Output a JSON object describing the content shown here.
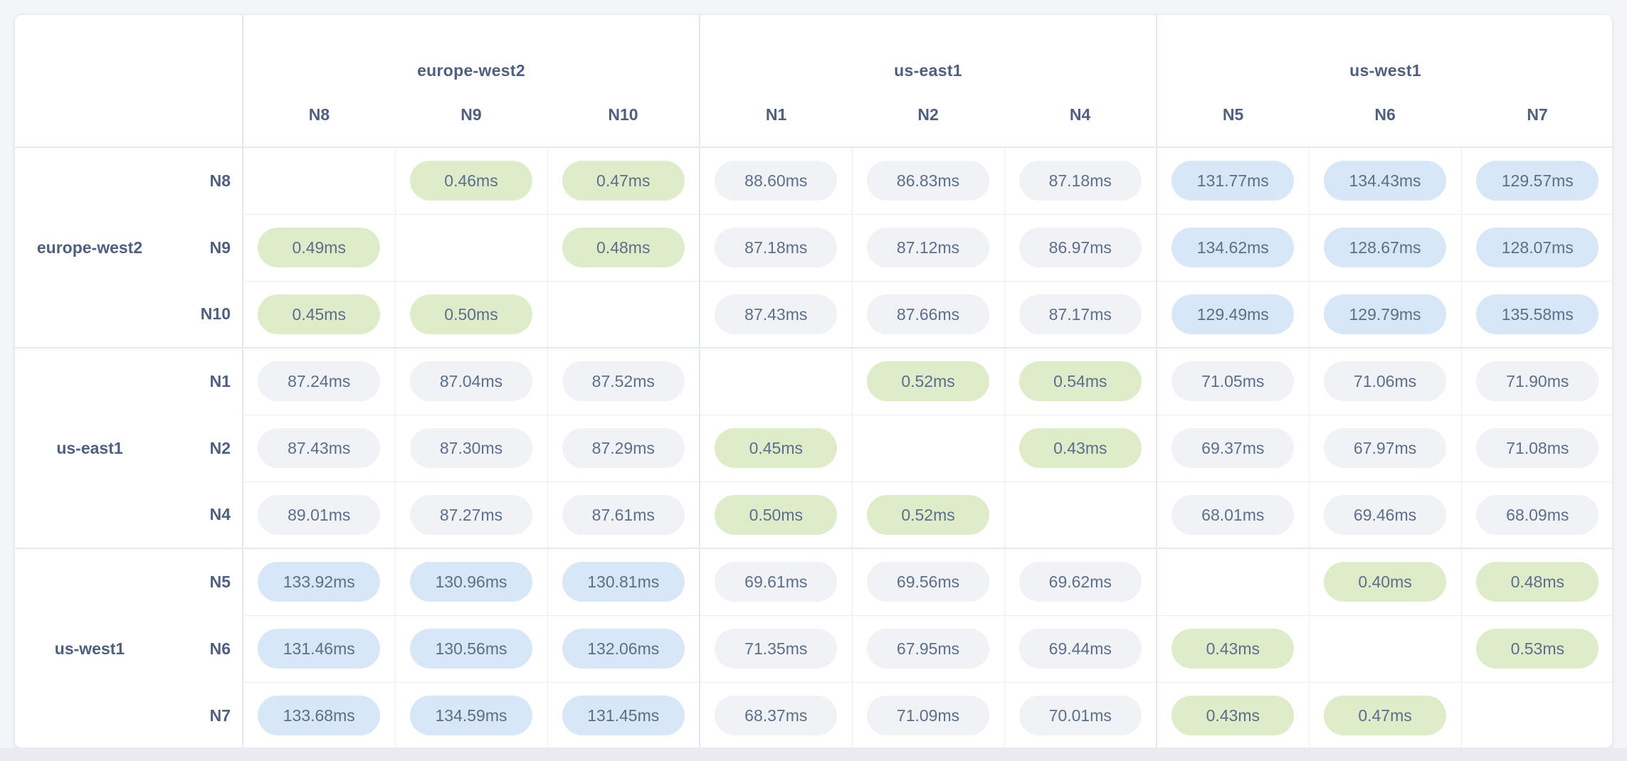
{
  "colors": {
    "page_bg": "#f4f5f9",
    "card_bg": "#ffffff",
    "card_border": "#e6e9f0",
    "line_strong": "#e4e8ef",
    "line_thin": "#ebeef4",
    "pill_low": "#dfecca",
    "pill_mid": "#f1f2f6",
    "pill_high": "#d7e7f8",
    "text_label": "#4f5f7d",
    "text_value": "#5c6e8a",
    "bottom_band": "#e9ebf0"
  },
  "chart_data": {
    "type": "heatmap",
    "unit": "ms",
    "description_of_cells": "round-trip latency between row node and column node; diagonal cells are blank",
    "groups": [
      {
        "region": "europe-west2",
        "nodes": [
          "N8",
          "N9",
          "N10"
        ]
      },
      {
        "region": "us-east1",
        "nodes": [
          "N1",
          "N2",
          "N4"
        ]
      },
      {
        "region": "us-west1",
        "nodes": [
          "N5",
          "N6",
          "N7"
        ]
      }
    ],
    "node_order": [
      "N8",
      "N9",
      "N10",
      "N1",
      "N2",
      "N4",
      "N5",
      "N6",
      "N7"
    ],
    "color_rule": {
      "green_max_ms": 1,
      "blue_min_ms": 100,
      "gray_otherwise": true
    },
    "values_ms": [
      [
        null,
        0.46,
        0.47,
        88.6,
        86.83,
        87.18,
        131.77,
        134.43,
        129.57
      ],
      [
        0.49,
        null,
        0.48,
        87.18,
        87.12,
        86.97,
        134.62,
        128.67,
        128.07
      ],
      [
        0.45,
        0.5,
        null,
        87.43,
        87.66,
        87.17,
        129.49,
        129.79,
        135.58
      ],
      [
        87.24,
        87.04,
        87.52,
        null,
        0.52,
        0.54,
        71.05,
        71.06,
        71.9
      ],
      [
        87.43,
        87.3,
        87.29,
        0.45,
        null,
        0.43,
        69.37,
        67.97,
        71.08
      ],
      [
        89.01,
        87.27,
        87.61,
        0.5,
        0.52,
        null,
        68.01,
        69.46,
        68.09
      ],
      [
        133.92,
        130.96,
        130.81,
        69.61,
        69.56,
        69.62,
        null,
        0.4,
        0.48
      ],
      [
        131.46,
        130.56,
        132.06,
        71.35,
        67.95,
        69.44,
        0.43,
        null,
        0.53
      ],
      [
        133.68,
        134.59,
        131.45,
        68.37,
        71.09,
        70.01,
        0.43,
        0.47,
        null
      ]
    ]
  }
}
